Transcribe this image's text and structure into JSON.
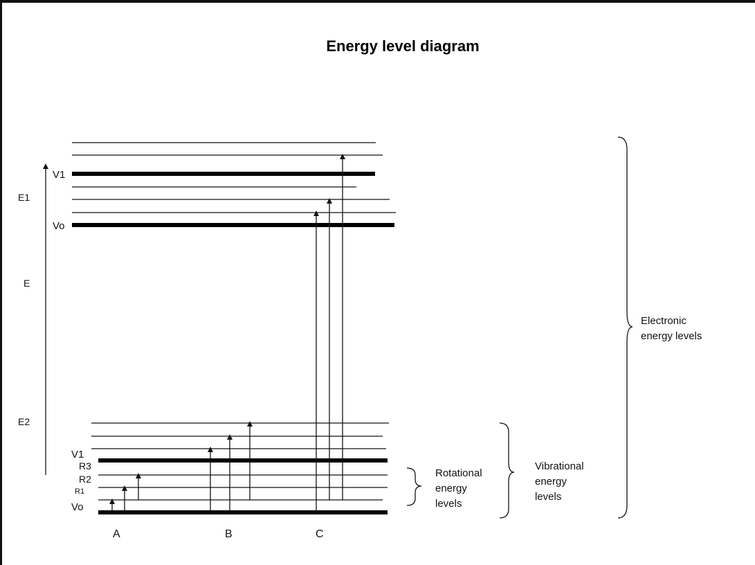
{
  "title": "Energy level diagram",
  "axis": {
    "E1": "E1",
    "E": "E",
    "E2": "E2"
  },
  "upper_state": {
    "V1": "V1",
    "V0": "Vo"
  },
  "lower_state": {
    "V1": "V1",
    "R3": "R3",
    "R2": "R2",
    "R1": "R1",
    "V0": "Vo"
  },
  "transition_groups": [
    "A",
    "B",
    "C"
  ],
  "braces": {
    "rotational": [
      "Rotational",
      "energy",
      "levels"
    ],
    "vibrational": [
      "Vibrational",
      "energy",
      "levels"
    ],
    "electronic": [
      "Electronic",
      "energy levels"
    ]
  }
}
